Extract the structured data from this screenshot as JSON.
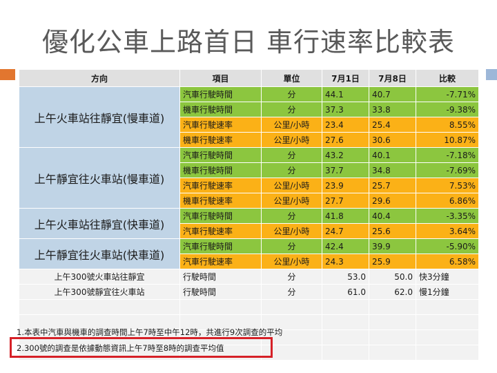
{
  "title": "優化公車上路首日  車行速率比較表",
  "headers": {
    "direction": "方向",
    "item": "項目",
    "unit": "單位",
    "d1": "7月1日",
    "d2": "7月8日",
    "compare": "比較"
  },
  "groups": [
    {
      "direction": "上午火車站往靜宜(慢車道)",
      "rows": [
        {
          "item": "汽車行駛時間",
          "unit": "分",
          "d1": "44.1",
          "d2": "40.7",
          "compare": "-7.71%",
          "color": "green"
        },
        {
          "item": "機車行駛時間",
          "unit": "分",
          "d1": "37.3",
          "d2": "33.8",
          "compare": "-9.38%",
          "color": "green"
        },
        {
          "item": "汽車行駛速率",
          "unit": "公里/小時",
          "d1": "23.4",
          "d2": "25.4",
          "compare": "8.55%",
          "color": "orange"
        },
        {
          "item": "機車行駛速率",
          "unit": "公里/小時",
          "d1": "27.6",
          "d2": "30.6",
          "compare": "10.87%",
          "color": "orange"
        }
      ]
    },
    {
      "direction": "上午靜宜往火車站(慢車道)",
      "rows": [
        {
          "item": "汽車行駛時間",
          "unit": "分",
          "d1": "43.2",
          "d2": "40.1",
          "compare": "-7.18%",
          "color": "green"
        },
        {
          "item": "機車行駛時間",
          "unit": "分",
          "d1": "37.7",
          "d2": "34.8",
          "compare": "-7.69%",
          "color": "green"
        },
        {
          "item": "汽車行駛速率",
          "unit": "公里/小時",
          "d1": "23.9",
          "d2": "25.7",
          "compare": "7.53%",
          "color": "orange"
        },
        {
          "item": "機車行駛速率",
          "unit": "公里/小時",
          "d1": "27.7",
          "d2": "29.6",
          "compare": "6.86%",
          "color": "orange"
        }
      ]
    },
    {
      "direction": "上午火車站往靜宜(快車道)",
      "rows": [
        {
          "item": "汽車行駛時間",
          "unit": "分",
          "d1": "41.8",
          "d2": "40.4",
          "compare": "-3.35%",
          "color": "green"
        },
        {
          "item": "汽車行駛速率",
          "unit": "公里/小時",
          "d1": "24.7",
          "d2": "25.6",
          "compare": "3.64%",
          "color": "orange"
        }
      ]
    },
    {
      "direction": "上午靜宜往火車站(快車道)",
      "rows": [
        {
          "item": "汽車行駛時間",
          "unit": "分",
          "d1": "42.4",
          "d2": "39.9",
          "compare": "-5.90%",
          "color": "green"
        },
        {
          "item": "汽車行駛速率",
          "unit": "公里/小時",
          "d1": "24.3",
          "d2": "25.9",
          "compare": "6.58%",
          "color": "orange"
        }
      ]
    }
  ],
  "bus_rows": [
    {
      "direction": "上午300號火車站往靜宜",
      "item": "行駛時間",
      "unit": "分",
      "d1": "53.0",
      "d2": "50.0",
      "compare": "快3分鐘"
    },
    {
      "direction": "上午300號靜宜往火車站",
      "item": "行駛時間",
      "unit": "分",
      "d1": "61.0",
      "d2": "62.0",
      "compare": "慢1分鐘"
    }
  ],
  "notes": [
    "1.本表中汽車與機車的調查時間上午7時至中午12時，共進行9次調查的平均",
    "2.300號的調查是依據動態資訊上午7時至8時的調查平均值"
  ]
}
